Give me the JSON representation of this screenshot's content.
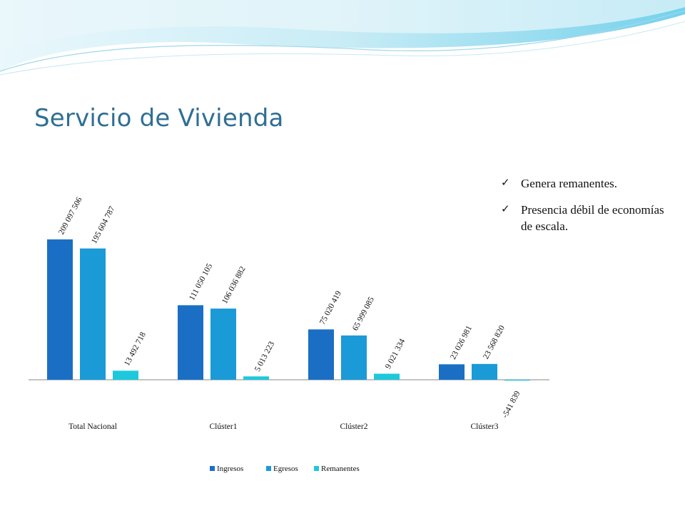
{
  "slide": {
    "title": "Servicio de Vivienda",
    "bullets": [
      {
        "text": "Genera remanentes."
      },
      {
        "text": "Presencia débil de economías de escala."
      }
    ],
    "check_icon": "✓"
  },
  "colors": {
    "title": "#2f6f93",
    "Ingresos": "#1a6fc4",
    "Egresos": "#1a9ad6",
    "Remanentes": "#1ec8dc"
  },
  "chart_data": {
    "type": "bar",
    "categories": [
      "Total Nacional",
      "Clúster1",
      "Clúster2",
      "Clúster3"
    ],
    "series": [
      {
        "name": "Ingresos",
        "values": [
          209097506,
          111050105,
          75020419,
          23026981
        ],
        "labels": [
          "209 097 506",
          "111 050 105",
          "75 020 419",
          "23 026 981"
        ]
      },
      {
        "name": "Egresos",
        "values": [
          195604787,
          106036882,
          65999085,
          23568820
        ],
        "labels": [
          "195 604 787",
          "106 036 882",
          "65 999 085",
          "23 568 820"
        ]
      },
      {
        "name": "Remanentes",
        "values": [
          13492718,
          5013223,
          9021334,
          -541839
        ],
        "labels": [
          "13 492 718",
          "5 013 223",
          "9 021 334",
          "-541 839"
        ]
      }
    ],
    "ylim": [
      -2000000,
      215000000
    ],
    "grid": false,
    "legend_position": "bottom"
  }
}
